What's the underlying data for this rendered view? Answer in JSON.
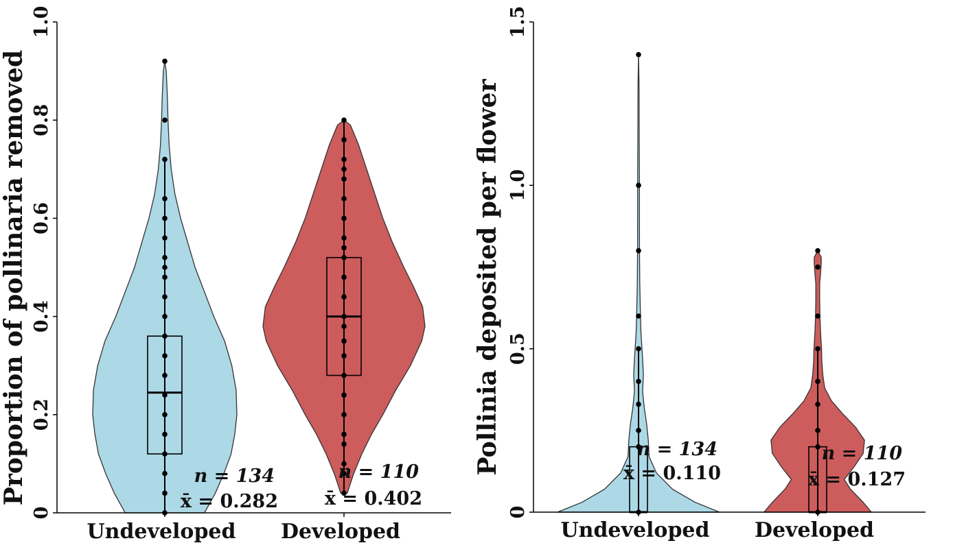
{
  "chart_data": [
    {
      "type": "violin",
      "title": "",
      "xlabel": "",
      "ylabel": "Proportion of pollinaria removed",
      "ylim": [
        0,
        1.0
      ],
      "yticks": [
        "0",
        "0.2",
        "0.4",
        "0.6",
        "0.8",
        "1.0"
      ],
      "categories": [
        "Undeveloped",
        "Developed"
      ],
      "colors": [
        "#ADD8E6",
        "#CD5C5C"
      ],
      "groups": [
        {
          "category": "Undeveloped",
          "n_label": "n = 134",
          "mean_label": "x̄ = 0.282",
          "min": 0,
          "max": 0.92,
          "box": {
            "q1": 0.12,
            "median": 0.245,
            "q3": 0.36
          },
          "whisker": [
            0,
            0.72
          ],
          "points": [
            0,
            0.04,
            0.08,
            0.12,
            0.16,
            0.2,
            0.24,
            0.28,
            0.32,
            0.36,
            0.4,
            0.44,
            0.48,
            0.5,
            0.52,
            0.56,
            0.6,
            0.64,
            0.72,
            0.8,
            0.92
          ],
          "density": [
            [
              0,
              0.55
            ],
            [
              0.04,
              0.7
            ],
            [
              0.08,
              0.82
            ],
            [
              0.12,
              0.92
            ],
            [
              0.16,
              0.97
            ],
            [
              0.2,
              1.0
            ],
            [
              0.25,
              0.99
            ],
            [
              0.3,
              0.93
            ],
            [
              0.35,
              0.83
            ],
            [
              0.4,
              0.68
            ],
            [
              0.45,
              0.55
            ],
            [
              0.5,
              0.42
            ],
            [
              0.55,
              0.32
            ],
            [
              0.6,
              0.22
            ],
            [
              0.65,
              0.14
            ],
            [
              0.7,
              0.09
            ],
            [
              0.75,
              0.06
            ],
            [
              0.8,
              0.045
            ],
            [
              0.85,
              0.035
            ],
            [
              0.9,
              0.02
            ],
            [
              0.92,
              0.0
            ]
          ]
        },
        {
          "category": "Developed",
          "n_label": "n = 110",
          "mean_label": "x̄ = 0.402",
          "min": 0.04,
          "max": 0.8,
          "box": {
            "q1": 0.28,
            "median": 0.4,
            "q3": 0.52
          },
          "whisker": [
            0.04,
            0.8
          ],
          "points": [
            0.04,
            0.08,
            0.1,
            0.14,
            0.16,
            0.2,
            0.24,
            0.28,
            0.32,
            0.35,
            0.38,
            0.4,
            0.44,
            0.48,
            0.52,
            0.54,
            0.56,
            0.6,
            0.64,
            0.68,
            0.7,
            0.72,
            0.76,
            0.8
          ],
          "density": [
            [
              0.04,
              0.04
            ],
            [
              0.08,
              0.12
            ],
            [
              0.12,
              0.22
            ],
            [
              0.16,
              0.34
            ],
            [
              0.2,
              0.48
            ],
            [
              0.25,
              0.64
            ],
            [
              0.3,
              0.82
            ],
            [
              0.35,
              0.96
            ],
            [
              0.38,
              1.0
            ],
            [
              0.42,
              0.97
            ],
            [
              0.46,
              0.86
            ],
            [
              0.5,
              0.74
            ],
            [
              0.55,
              0.6
            ],
            [
              0.6,
              0.48
            ],
            [
              0.65,
              0.38
            ],
            [
              0.7,
              0.28
            ],
            [
              0.75,
              0.18
            ],
            [
              0.79,
              0.08
            ],
            [
              0.8,
              0.0
            ]
          ]
        }
      ]
    },
    {
      "type": "violin",
      "title": "",
      "xlabel": "",
      "ylabel": "Pollinia deposited per flower",
      "ylim": [
        0,
        1.5
      ],
      "yticks": [
        "0",
        "0.5",
        "1.0",
        "1.5"
      ],
      "categories": [
        "Undeveloped",
        "Developed"
      ],
      "colors": [
        "#ADD8E6",
        "#CD5C5C"
      ],
      "groups": [
        {
          "category": "Undeveloped",
          "n_label": "n = 134",
          "mean_label": "x̄ = 0.110",
          "min": 0,
          "max": 1.4,
          "box": {
            "q1": 0,
            "median": 0,
            "q3": 0.2
          },
          "whisker": [
            0,
            0.5
          ],
          "points": [
            0,
            0.2,
            0.25,
            0.33,
            0.4,
            0.5,
            0.6,
            0.8,
            1.0,
            1.4
          ],
          "density": [
            [
              0,
              1.0
            ],
            [
              0.03,
              0.7
            ],
            [
              0.07,
              0.42
            ],
            [
              0.12,
              0.22
            ],
            [
              0.17,
              0.13
            ],
            [
              0.22,
              0.12
            ],
            [
              0.27,
              0.1
            ],
            [
              0.32,
              0.07
            ],
            [
              0.37,
              0.05
            ],
            [
              0.42,
              0.06
            ],
            [
              0.47,
              0.05
            ],
            [
              0.55,
              0.03
            ],
            [
              0.62,
              0.022
            ],
            [
              0.7,
              0.015
            ],
            [
              0.8,
              0.012
            ],
            [
              0.9,
              0.011
            ],
            [
              1.0,
              0.011
            ],
            [
              1.1,
              0.009
            ],
            [
              1.2,
              0.008
            ],
            [
              1.3,
              0.007
            ],
            [
              1.4,
              0.0
            ]
          ]
        },
        {
          "category": "Developed",
          "n_label": "n = 110",
          "mean_label": "x̄ = 0.127",
          "min": 0,
          "max": 0.8,
          "box": {
            "q1": 0,
            "median": 0,
            "q3": 0.2
          },
          "whisker": [
            0,
            0.5
          ],
          "points": [
            0,
            0.2,
            0.25,
            0.33,
            0.4,
            0.5,
            0.6,
            0.75,
            0.8
          ],
          "density": [
            [
              0,
              0.85
            ],
            [
              0.03,
              0.72
            ],
            [
              0.07,
              0.52
            ],
            [
              0.1,
              0.42
            ],
            [
              0.14,
              0.58
            ],
            [
              0.18,
              0.72
            ],
            [
              0.22,
              0.74
            ],
            [
              0.26,
              0.6
            ],
            [
              0.3,
              0.4
            ],
            [
              0.34,
              0.22
            ],
            [
              0.38,
              0.11
            ],
            [
              0.42,
              0.08
            ],
            [
              0.46,
              0.065
            ],
            [
              0.5,
              0.06
            ],
            [
              0.55,
              0.045
            ],
            [
              0.6,
              0.035
            ],
            [
              0.65,
              0.03
            ],
            [
              0.7,
              0.03
            ],
            [
              0.73,
              0.045
            ],
            [
              0.76,
              0.055
            ],
            [
              0.78,
              0.055
            ],
            [
              0.8,
              0.0
            ]
          ]
        }
      ]
    }
  ]
}
